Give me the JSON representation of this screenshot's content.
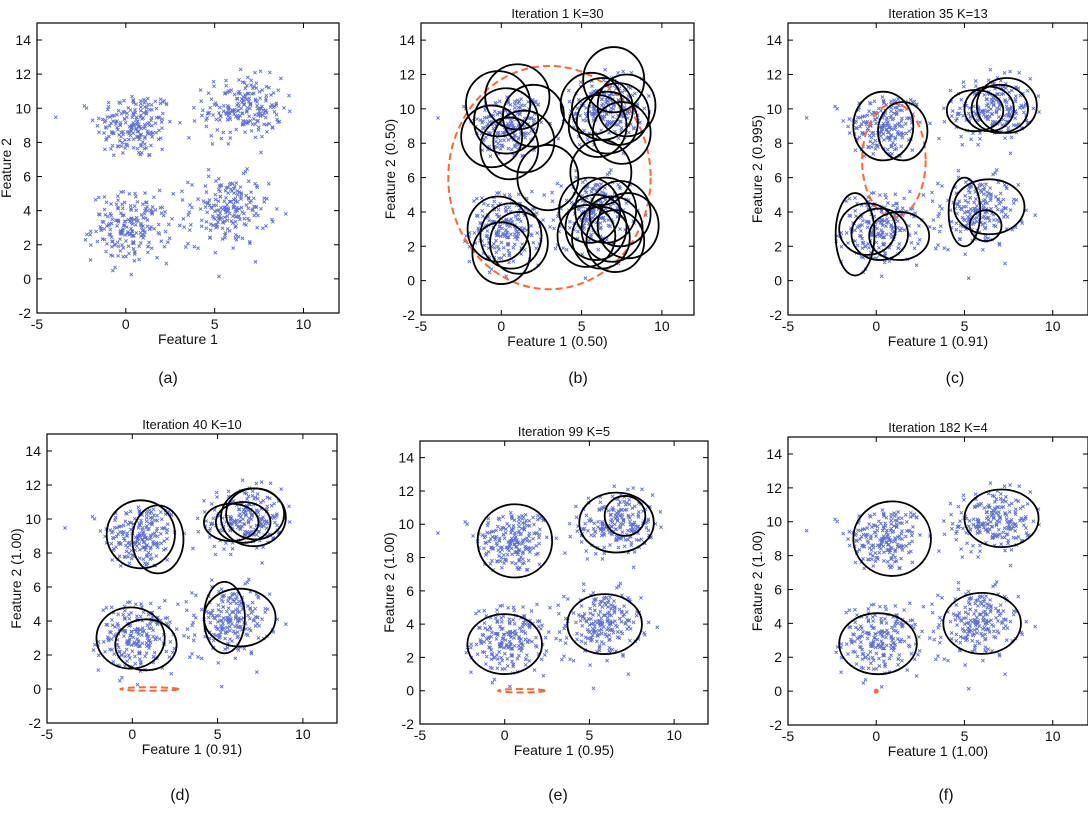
{
  "figure": {
    "colors": {
      "points": "#5b6fd6",
      "ellipses": "#000000",
      "prior": "#ff6633",
      "axes": "#000000"
    },
    "point_marker": "x"
  },
  "chart_data": [
    {
      "id": "a",
      "type": "scatter",
      "caption": "(a)",
      "title": "",
      "xlabel": "Feature 1",
      "ylabel": "Feature 2",
      "xlim": [
        -5,
        12
      ],
      "ylim": [
        -2,
        15
      ],
      "xticks": [
        -5,
        0,
        5,
        10
      ],
      "yticks": [
        -2,
        0,
        2,
        4,
        6,
        8,
        10,
        12,
        14
      ],
      "grid": false,
      "clusters": [
        {
          "center": [
            0.5,
            9.0
          ],
          "spread": [
            1.1,
            1.0
          ],
          "n": 200
        },
        {
          "center": [
            6.6,
            10.0
          ],
          "spread": [
            1.1,
            0.9
          ],
          "n": 200
        },
        {
          "center": [
            0.3,
            3.0
          ],
          "spread": [
            1.1,
            1.0
          ],
          "n": 200
        },
        {
          "center": [
            5.8,
            4.0
          ],
          "spread": [
            1.1,
            1.0
          ],
          "n": 200
        }
      ],
      "ellipses": [],
      "prior": null
    },
    {
      "id": "b",
      "type": "scatter",
      "caption": "(b)",
      "title": "Iteration 1 K=30",
      "xlabel": "Feature 1 (0.50)",
      "ylabel": "Feature 2 (0.50)",
      "xlim": [
        -5,
        12
      ],
      "ylim": [
        -2,
        15
      ],
      "xticks": [
        -5,
        0,
        5,
        10
      ],
      "yticks": [
        -2,
        0,
        2,
        4,
        6,
        8,
        10,
        12,
        14
      ],
      "grid": false,
      "clusters": [
        {
          "center": [
            0.5,
            9.0
          ],
          "spread": [
            1.1,
            1.0
          ],
          "n": 200
        },
        {
          "center": [
            6.6,
            10.0
          ],
          "spread": [
            1.1,
            0.9
          ],
          "n": 200
        },
        {
          "center": [
            0.3,
            3.0
          ],
          "spread": [
            1.1,
            1.0
          ],
          "n": 200
        },
        {
          "center": [
            5.8,
            4.0
          ],
          "spread": [
            1.1,
            1.0
          ],
          "n": 200
        }
      ],
      "ellipses": [
        {
          "cx": -0.2,
          "cy": 10.3,
          "rx": 2.0,
          "ry": 1.9,
          "angle": 0
        },
        {
          "cx": 1.0,
          "cy": 10.7,
          "rx": 2.0,
          "ry": 1.9,
          "angle": 0
        },
        {
          "cx": 0.3,
          "cy": 9.3,
          "rx": 2.0,
          "ry": 1.9,
          "angle": 0
        },
        {
          "cx": 2.0,
          "cy": 9.6,
          "rx": 1.9,
          "ry": 1.8,
          "angle": 0
        },
        {
          "cx": -0.6,
          "cy": 8.4,
          "rx": 1.9,
          "ry": 1.8,
          "angle": 0
        },
        {
          "cx": 1.4,
          "cy": 8.1,
          "rx": 1.9,
          "ry": 1.8,
          "angle": 0
        },
        {
          "cx": 0.5,
          "cy": 7.7,
          "rx": 1.8,
          "ry": 1.8,
          "angle": 0
        },
        {
          "cx": 2.9,
          "cy": 6.0,
          "rx": 1.9,
          "ry": 1.9,
          "angle": 0
        },
        {
          "cx": 7.0,
          "cy": 11.7,
          "rx": 1.9,
          "ry": 1.9,
          "angle": 0
        },
        {
          "cx": 5.6,
          "cy": 10.3,
          "rx": 1.9,
          "ry": 1.8,
          "angle": 0
        },
        {
          "cx": 6.3,
          "cy": 10.0,
          "rx": 1.9,
          "ry": 1.8,
          "angle": 0
        },
        {
          "cx": 7.3,
          "cy": 9.7,
          "rx": 1.9,
          "ry": 1.8,
          "angle": 0
        },
        {
          "cx": 6.6,
          "cy": 9.2,
          "rx": 1.9,
          "ry": 1.8,
          "angle": 0
        },
        {
          "cx": 7.8,
          "cy": 10.2,
          "rx": 1.8,
          "ry": 1.8,
          "angle": 0
        },
        {
          "cx": 6.0,
          "cy": 9.0,
          "rx": 1.8,
          "ry": 1.8,
          "angle": 0
        },
        {
          "cx": 7.5,
          "cy": 8.6,
          "rx": 1.8,
          "ry": 1.8,
          "angle": 0
        },
        {
          "cx": 6.2,
          "cy": 6.3,
          "rx": 1.9,
          "ry": 1.9,
          "angle": 0
        },
        {
          "cx": -0.2,
          "cy": 3.0,
          "rx": 1.9,
          "ry": 1.9,
          "angle": 0
        },
        {
          "cx": 0.6,
          "cy": 2.6,
          "rx": 1.9,
          "ry": 1.9,
          "angle": 0
        },
        {
          "cx": 0.0,
          "cy": 1.6,
          "rx": 1.8,
          "ry": 1.8,
          "angle": 0
        },
        {
          "cx": 1.1,
          "cy": 2.2,
          "rx": 1.8,
          "ry": 1.8,
          "angle": 0
        },
        {
          "cx": 5.5,
          "cy": 4.1,
          "rx": 1.9,
          "ry": 1.9,
          "angle": 0
        },
        {
          "cx": 6.5,
          "cy": 4.1,
          "rx": 1.9,
          "ry": 1.9,
          "angle": 0
        },
        {
          "cx": 7.4,
          "cy": 3.9,
          "rx": 1.9,
          "ry": 1.9,
          "angle": 0
        },
        {
          "cx": 5.9,
          "cy": 3.1,
          "rx": 1.9,
          "ry": 1.9,
          "angle": 0
        },
        {
          "cx": 6.9,
          "cy": 3.0,
          "rx": 1.9,
          "ry": 1.9,
          "angle": 0
        },
        {
          "cx": 7.9,
          "cy": 3.2,
          "rx": 1.9,
          "ry": 1.9,
          "angle": 0
        },
        {
          "cx": 5.3,
          "cy": 2.6,
          "rx": 1.8,
          "ry": 1.8,
          "angle": 0
        },
        {
          "cx": 6.2,
          "cy": 2.5,
          "rx": 1.8,
          "ry": 1.8,
          "angle": 0
        },
        {
          "cx": 7.1,
          "cy": 2.3,
          "rx": 1.8,
          "ry": 1.8,
          "angle": 0
        }
      ],
      "prior": {
        "cx": 3.0,
        "cy": 6.0,
        "rx": 6.3,
        "ry": 6.5,
        "angle": 0
      }
    },
    {
      "id": "c",
      "type": "scatter",
      "caption": "(c)",
      "title": "Iteration 35 K=13",
      "xlabel": "Feature 1 (0.91)",
      "ylabel": "Feature 2 (0.995)",
      "xlim": [
        -5,
        12
      ],
      "ylim": [
        -2,
        15
      ],
      "xticks": [
        -5,
        0,
        5,
        10
      ],
      "yticks": [
        -2,
        0,
        2,
        4,
        6,
        8,
        10,
        12,
        14
      ],
      "grid": false,
      "clusters": [
        {
          "center": [
            0.5,
            9.0
          ],
          "spread": [
            1.1,
            1.0
          ],
          "n": 200
        },
        {
          "center": [
            6.6,
            10.0
          ],
          "spread": [
            1.1,
            0.9
          ],
          "n": 200
        },
        {
          "center": [
            0.3,
            3.0
          ],
          "spread": [
            1.1,
            1.0
          ],
          "n": 200
        },
        {
          "center": [
            5.8,
            4.0
          ],
          "spread": [
            1.1,
            1.0
          ],
          "n": 200
        }
      ],
      "ellipses": [
        {
          "cx": 0.4,
          "cy": 9.0,
          "rx": 1.7,
          "ry": 2.0,
          "angle": 0
        },
        {
          "cx": 1.5,
          "cy": 8.7,
          "rx": 1.4,
          "ry": 1.7,
          "angle": 0
        },
        {
          "cx": 5.6,
          "cy": 9.9,
          "rx": 1.6,
          "ry": 1.2,
          "angle": 0
        },
        {
          "cx": 6.4,
          "cy": 10.0,
          "rx": 1.4,
          "ry": 1.3,
          "angle": 0
        },
        {
          "cx": 7.4,
          "cy": 10.2,
          "rx": 1.7,
          "ry": 1.6,
          "angle": 0
        },
        {
          "cx": 7.0,
          "cy": 10.0,
          "rx": 1.6,
          "ry": 1.4,
          "angle": 0
        },
        {
          "cx": -1.2,
          "cy": 2.7,
          "rx": 1.1,
          "ry": 2.4,
          "angle": 0
        },
        {
          "cx": -0.5,
          "cy": 3.0,
          "rx": 1.6,
          "ry": 1.5,
          "angle": 0
        },
        {
          "cx": 0.2,
          "cy": 2.7,
          "rx": 1.6,
          "ry": 1.5,
          "angle": 0
        },
        {
          "cx": 1.3,
          "cy": 2.6,
          "rx": 1.7,
          "ry": 1.4,
          "angle": 0
        },
        {
          "cx": 5.0,
          "cy": 4.0,
          "rx": 0.9,
          "ry": 2.0,
          "angle": 0
        },
        {
          "cx": 6.4,
          "cy": 4.3,
          "rx": 2.0,
          "ry": 1.6,
          "angle": 0
        },
        {
          "cx": 6.2,
          "cy": 3.2,
          "rx": 0.9,
          "ry": 0.9,
          "angle": 0
        }
      ],
      "prior": {
        "cx": 1.0,
        "cy": 7.0,
        "rx": 1.8,
        "ry": 3.3,
        "angle": 0
      }
    },
    {
      "id": "d",
      "type": "scatter",
      "caption": "(d)",
      "title": "Iteration 40 K=10",
      "xlabel": "Feature 1 (0.91)",
      "ylabel": "Feature 2 (1.00)",
      "xlim": [
        -5,
        12
      ],
      "ylim": [
        -2,
        15
      ],
      "xticks": [
        -5,
        0,
        5,
        10
      ],
      "yticks": [
        -2,
        0,
        2,
        4,
        6,
        8,
        10,
        12,
        14
      ],
      "grid": false,
      "clusters": [
        {
          "center": [
            0.5,
            9.0
          ],
          "spread": [
            1.1,
            1.0
          ],
          "n": 200
        },
        {
          "center": [
            6.6,
            10.0
          ],
          "spread": [
            1.1,
            0.9
          ],
          "n": 200
        },
        {
          "center": [
            0.3,
            3.0
          ],
          "spread": [
            1.1,
            1.0
          ],
          "n": 200
        },
        {
          "center": [
            5.8,
            4.0
          ],
          "spread": [
            1.1,
            1.0
          ],
          "n": 200
        }
      ],
      "ellipses": [
        {
          "cx": 0.5,
          "cy": 9.1,
          "rx": 2.0,
          "ry": 2.0,
          "angle": 0
        },
        {
          "cx": 1.5,
          "cy": 8.8,
          "rx": 1.5,
          "ry": 2.0,
          "angle": 0
        },
        {
          "cx": 5.8,
          "cy": 9.8,
          "rx": 1.6,
          "ry": 1.1,
          "angle": 0
        },
        {
          "cx": 6.5,
          "cy": 9.8,
          "rx": 1.6,
          "ry": 1.2,
          "angle": 0
        },
        {
          "cx": 7.1,
          "cy": 10.1,
          "rx": 1.9,
          "ry": 1.7,
          "angle": 0
        },
        {
          "cx": 7.2,
          "cy": 10.3,
          "rx": 1.7,
          "ry": 1.5,
          "angle": 0
        },
        {
          "cx": -0.1,
          "cy": 3.0,
          "rx": 2.0,
          "ry": 1.8,
          "angle": 0
        },
        {
          "cx": 0.8,
          "cy": 2.6,
          "rx": 1.8,
          "ry": 1.5,
          "angle": 0
        },
        {
          "cx": 5.4,
          "cy": 4.2,
          "rx": 1.2,
          "ry": 2.1,
          "angle": 0
        },
        {
          "cx": 6.3,
          "cy": 4.2,
          "rx": 2.1,
          "ry": 1.7,
          "angle": 0
        }
      ],
      "prior": {
        "cx": 1.0,
        "cy": 0.0,
        "rx": 1.7,
        "ry": 0.1,
        "angle": 0
      }
    },
    {
      "id": "e",
      "type": "scatter",
      "caption": "(e)",
      "title": "Iteration 99 K=5",
      "xlabel": "Feature 1 (0.95)",
      "ylabel": "Feature 2 (1.00)",
      "xlim": [
        -5,
        12
      ],
      "ylim": [
        -2,
        15
      ],
      "xticks": [
        -5,
        0,
        5,
        10
      ],
      "yticks": [
        -2,
        0,
        2,
        4,
        6,
        8,
        10,
        12,
        14
      ],
      "grid": false,
      "clusters": [
        {
          "center": [
            0.5,
            9.0
          ],
          "spread": [
            1.1,
            1.0
          ],
          "n": 200
        },
        {
          "center": [
            6.6,
            10.0
          ],
          "spread": [
            1.1,
            0.9
          ],
          "n": 200
        },
        {
          "center": [
            0.3,
            3.0
          ],
          "spread": [
            1.1,
            1.0
          ],
          "n": 200
        },
        {
          "center": [
            5.8,
            4.0
          ],
          "spread": [
            1.1,
            1.0
          ],
          "n": 200
        }
      ],
      "ellipses": [
        {
          "cx": 0.6,
          "cy": 9.0,
          "rx": 2.2,
          "ry": 2.2,
          "angle": 0
        },
        {
          "cx": 6.6,
          "cy": 10.1,
          "rx": 2.2,
          "ry": 1.8,
          "angle": 0
        },
        {
          "cx": 7.1,
          "cy": 10.5,
          "rx": 1.2,
          "ry": 1.2,
          "angle": 0
        },
        {
          "cx": 0.0,
          "cy": 2.8,
          "rx": 2.2,
          "ry": 1.8,
          "angle": 0
        },
        {
          "cx": 5.9,
          "cy": 4.0,
          "rx": 2.2,
          "ry": 1.8,
          "angle": 0
        }
      ],
      "prior": {
        "cx": 1.0,
        "cy": 0.0,
        "rx": 1.4,
        "ry": 0.1,
        "angle": 0
      }
    },
    {
      "id": "f",
      "type": "scatter",
      "caption": "(f)",
      "title": "Iteration 182 K=4",
      "xlabel": "Feature 1 (1.00)",
      "ylabel": "Feature 2 (1.00)",
      "xlim": [
        -5,
        12
      ],
      "ylim": [
        -2,
        15
      ],
      "xticks": [
        -5,
        0,
        5,
        10
      ],
      "yticks": [
        -2,
        0,
        2,
        4,
        6,
        8,
        10,
        12,
        14
      ],
      "grid": false,
      "clusters": [
        {
          "center": [
            0.5,
            9.0
          ],
          "spread": [
            1.1,
            1.0
          ],
          "n": 200
        },
        {
          "center": [
            6.6,
            10.0
          ],
          "spread": [
            1.1,
            0.9
          ],
          "n": 200
        },
        {
          "center": [
            0.3,
            3.0
          ],
          "spread": [
            1.1,
            1.0
          ],
          "n": 200
        },
        {
          "center": [
            5.8,
            4.0
          ],
          "spread": [
            1.1,
            1.0
          ],
          "n": 200
        }
      ],
      "ellipses": [
        {
          "cx": 0.9,
          "cy": 9.0,
          "rx": 2.2,
          "ry": 2.2,
          "angle": 0
        },
        {
          "cx": 7.1,
          "cy": 10.2,
          "rx": 2.1,
          "ry": 1.7,
          "angle": 0
        },
        {
          "cx": 0.1,
          "cy": 2.8,
          "rx": 2.2,
          "ry": 1.8,
          "angle": 0
        },
        {
          "cx": 6.0,
          "cy": 4.0,
          "rx": 2.2,
          "ry": 1.8,
          "angle": 0
        }
      ],
      "prior": {
        "cx": 0.0,
        "cy": 0.0,
        "rx": 0.06,
        "ry": 0.06,
        "angle": 0
      }
    }
  ]
}
